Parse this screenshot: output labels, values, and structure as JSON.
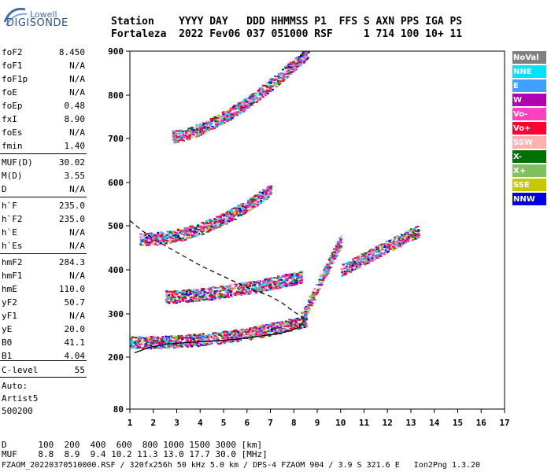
{
  "logo": {
    "line1": "Lowell",
    "line2": "DIGISONDE"
  },
  "header": {
    "line1": "Station    YYYY DAY   DDD HHMMSS P1  FFS S AXN PPS IGA PS",
    "line2": "Fortaleza  2022 Fev06 037 051000 RSF     1 714 100 10+ 11"
  },
  "params": [
    {
      "name": "foF2",
      "value": "8.450"
    },
    {
      "name": "foF1",
      "value": "N/A"
    },
    {
      "name": "foF1p",
      "value": "N/A"
    },
    {
      "name": "foE",
      "value": "N/A"
    },
    {
      "name": "foEp",
      "value": "0.48"
    },
    {
      "name": "fxI",
      "value": "8.90"
    },
    {
      "name": "foEs",
      "value": "N/A"
    },
    {
      "name": "fmin",
      "value": "1.40"
    },
    {
      "name": "MUF(D)",
      "value": "30.02"
    },
    {
      "name": "M(D)",
      "value": "3.55"
    },
    {
      "name": "D",
      "value": "N/A"
    },
    {
      "name": "h`F",
      "value": "235.0"
    },
    {
      "name": "h`F2",
      "value": "235.0"
    },
    {
      "name": "h`E",
      "value": "N/A"
    },
    {
      "name": "h`Es",
      "value": "N/A"
    },
    {
      "name": "hmF2",
      "value": "284.3"
    },
    {
      "name": "hmF1",
      "value": "N/A"
    },
    {
      "name": "hmE",
      "value": "110.0"
    },
    {
      "name": "yF2",
      "value": "50.7"
    },
    {
      "name": "yF1",
      "value": "N/A"
    },
    {
      "name": "yE",
      "value": "20.0"
    },
    {
      "name": "B0",
      "value": "41.1"
    },
    {
      "name": "B1",
      "value": "4.04"
    },
    {
      "name": "C-level",
      "value": "55"
    }
  ],
  "auto": {
    "line1": "Auto:",
    "line2": "Artist5",
    "line3": "500200"
  },
  "legend": [
    {
      "label": "NoVal",
      "bg": "#808080",
      "fg": "#ffffff"
    },
    {
      "label": "NNE",
      "bg": "#00e0ff",
      "fg": "#ffffff"
    },
    {
      "label": "E",
      "bg": "#3fa0ff",
      "fg": "#ffffff"
    },
    {
      "label": "W",
      "bg": "#b000b0",
      "fg": "#ffffff"
    },
    {
      "label": "Vo-",
      "bg": "#ff40c0",
      "fg": "#ffffff"
    },
    {
      "label": "Vo+",
      "bg": "#ff0030",
      "fg": "#ffffff"
    },
    {
      "label": "SSW",
      "bg": "#ffb0b0",
      "fg": "#ffffff"
    },
    {
      "label": "X-",
      "bg": "#007000",
      "fg": "#ffffff"
    },
    {
      "label": "X+",
      "bg": "#80c060",
      "fg": "#ffffff"
    },
    {
      "label": "SSE",
      "bg": "#c8c800",
      "fg": "#ffffff"
    },
    {
      "label": "NNW",
      "bg": "#0000e0",
      "fg": "#ffffff"
    }
  ],
  "footer": {
    "line1": "D      100  200  400  600  800 1000 1500 3000 [km]",
    "line2": "MUF    8.8  8.9  9.4 10.2 11.3 13.0 17.7 30.0 [MHz]",
    "line3": "FZAOM_20220370510000.RSF / 320fx256h 50 kHz 5.0 km / DPS-4 FZAOM 904 / 3.9 S 321.6 E   Ion2Png 1.3.20"
  },
  "chart_data": {
    "type": "scatter",
    "xlim": [
      1,
      17
    ],
    "ylim": [
      80,
      900
    ],
    "x_ticks": [
      1,
      2,
      3,
      4,
      5,
      6,
      7,
      8,
      9,
      10,
      11,
      12,
      13,
      14,
      15,
      16,
      17
    ],
    "y_ticks": [
      80,
      200,
      300,
      400,
      500,
      600,
      700,
      800,
      900
    ],
    "grid": false,
    "legend_placement": "right",
    "echo_traces": [
      {
        "x_start": 1.0,
        "x_end": 8.5,
        "y_start": 235,
        "y_end": 285,
        "curvature": 2.2
      },
      {
        "x_start": 1.4,
        "x_end": 7.0,
        "y_start": 470,
        "y_end": 585,
        "curvature": 2.0
      },
      {
        "x_start": 2.5,
        "x_end": 8.3,
        "y_start": 340,
        "y_end": 385,
        "curvature": 1.6
      },
      {
        "x_start": 2.8,
        "x_end": 8.6,
        "y_start": 705,
        "y_end": 900,
        "curvature": 1.5
      },
      {
        "x_start": 8.3,
        "x_end": 10.0,
        "y_start": 290,
        "y_end": 470,
        "curvature": 1.0
      },
      {
        "x_start": 10.0,
        "x_end": 13.3,
        "y_start": 400,
        "y_end": 490,
        "curvature": 1.0
      }
    ],
    "lines": [
      {
        "name": "profile",
        "style": "solid",
        "points": [
          [
            1.2,
            210
          ],
          [
            1.8,
            222
          ],
          [
            2.5,
            230
          ],
          [
            3.5,
            234
          ],
          [
            4.5,
            237
          ],
          [
            5.5,
            241
          ],
          [
            6.5,
            248
          ],
          [
            7.5,
            256
          ],
          [
            8.2,
            268
          ],
          [
            8.45,
            285
          ]
        ]
      },
      {
        "name": "muf",
        "style": "dashed",
        "points": [
          [
            1.0,
            512
          ],
          [
            1.5,
            490
          ],
          [
            2.0,
            470
          ],
          [
            3.0,
            440
          ],
          [
            4.0,
            410
          ],
          [
            5.0,
            385
          ],
          [
            6.0,
            360
          ],
          [
            7.0,
            340
          ],
          [
            7.5,
            325
          ],
          [
            8.0,
            305
          ],
          [
            8.45,
            290
          ]
        ]
      }
    ]
  }
}
